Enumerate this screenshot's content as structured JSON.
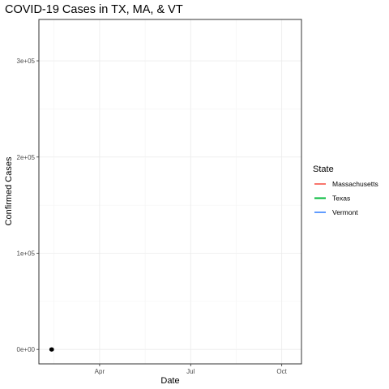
{
  "chart_data": {
    "type": "line",
    "title": "COVID-19 Cases in TX, MA, & VT",
    "xlabel": "Date",
    "ylabel": "Confirmed Cases",
    "x_ticks": [
      {
        "label": "Apr",
        "value": 0.2
      },
      {
        "label": "Jul",
        "value": 0.5
      },
      {
        "label": "Oct",
        "value": 0.8
      }
    ],
    "xlim": [
      0,
      0.865
    ],
    "y_ticks": [
      {
        "label": "0e+00",
        "value": 0
      },
      {
        "label": "1e+05",
        "value": 100000
      },
      {
        "label": "2e+05",
        "value": 200000
      },
      {
        "label": "3e+05",
        "value": 300000
      }
    ],
    "ylim": [
      -15000,
      343000
    ],
    "legend": {
      "title": "State",
      "position": "right",
      "entries": [
        {
          "name": "Massachusetts",
          "color": "#F8766D"
        },
        {
          "name": "Texas",
          "color": "#00BA38"
        },
        {
          "name": "Vermont",
          "color": "#619CFF"
        }
      ]
    },
    "series": [
      {
        "name": "Massachusetts",
        "color": "#F8766D",
        "points": [
          [
            0.04,
            0
          ],
          [
            0.041,
            0
          ],
          [
            0.042,
            0
          ],
          [
            0.043,
            0
          ]
        ]
      },
      {
        "name": "Texas",
        "color": "#00BA38",
        "points": [
          [
            0.04,
            0
          ],
          [
            0.041,
            0
          ],
          [
            0.042,
            0
          ],
          [
            0.043,
            0
          ]
        ]
      },
      {
        "name": "Vermont",
        "color": "#619CFF",
        "points": [
          [
            0.04,
            0
          ],
          [
            0.041,
            0
          ],
          [
            0.042,
            0
          ],
          [
            0.043,
            0
          ]
        ]
      }
    ],
    "current_points": [
      {
        "x": 0.041,
        "y": 0
      },
      {
        "x": 0.042,
        "y": 0
      },
      {
        "x": 0.043,
        "y": 0
      }
    ]
  }
}
